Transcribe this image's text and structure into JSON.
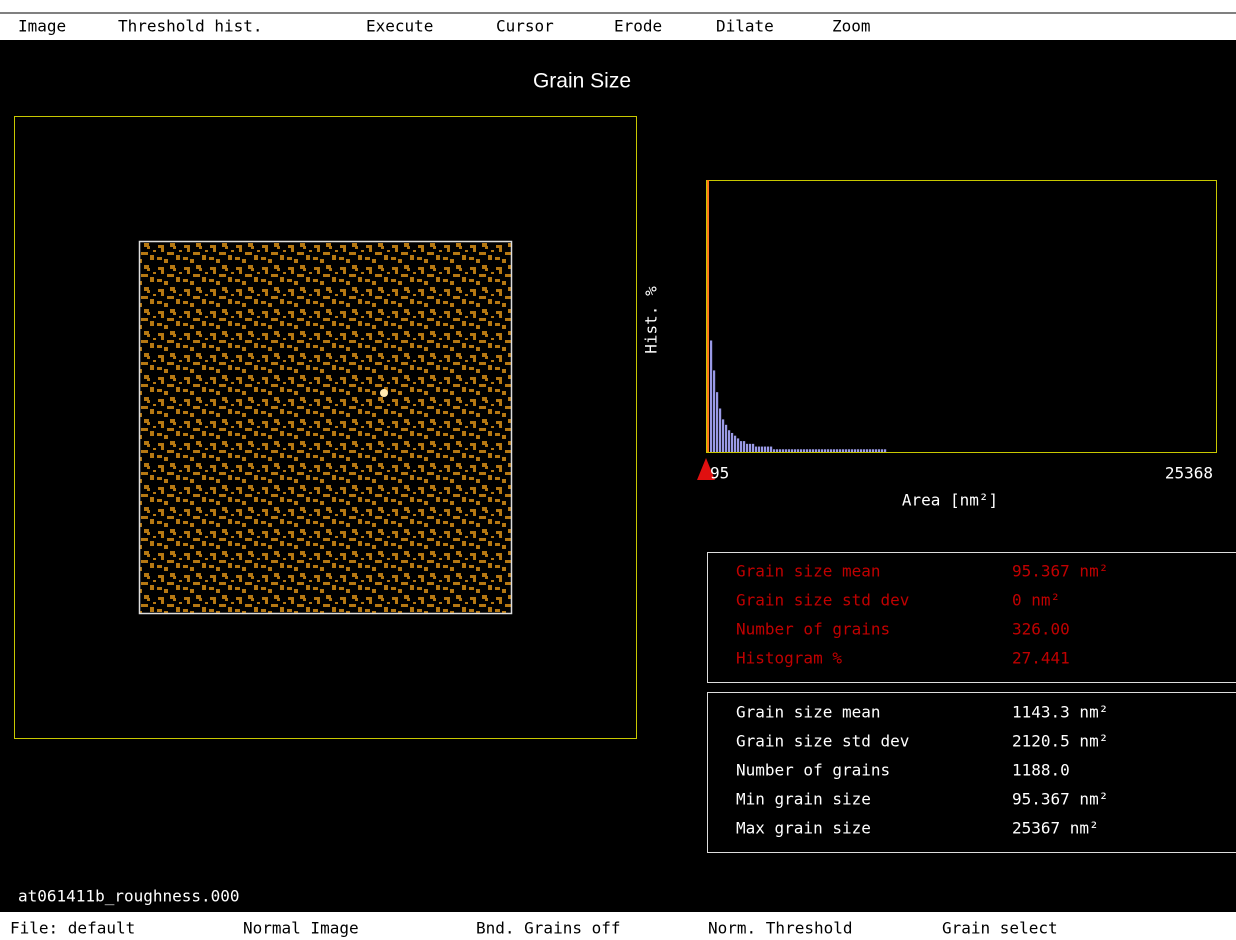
{
  "menu": {
    "items": [
      "Image",
      "Threshold hist.",
      "Execute",
      "Cursor",
      "Erode",
      "Dilate",
      "Zoom"
    ]
  },
  "title": "Grain Size",
  "image_panel": {
    "filename": "at061411b_roughness.000"
  },
  "histogram": {
    "y_label": "Hist. %",
    "x_label": "Area [nm²]",
    "x_min_label": "95",
    "x_max_label": "25368",
    "values": [
      100,
      41,
      30,
      22,
      16,
      12,
      10,
      8,
      7,
      6,
      5,
      4,
      4,
      3,
      3,
      3,
      2,
      2,
      2,
      2,
      2,
      2,
      1,
      1,
      1,
      1,
      1,
      1,
      1,
      1,
      1,
      1,
      1,
      1,
      1,
      1,
      1,
      1,
      1,
      1,
      1,
      1,
      1,
      1,
      1,
      1,
      1,
      1,
      1,
      1,
      1,
      1,
      1,
      1,
      1,
      1,
      1,
      1,
      1,
      1
    ]
  },
  "selected_stats": {
    "rows": [
      [
        "Grain size mean",
        "95.367 nm²"
      ],
      [
        "Grain size std dev",
        "0 nm²"
      ],
      [
        "Number of grains",
        "326.00"
      ],
      [
        "Histogram %",
        "27.441"
      ]
    ]
  },
  "total_stats": {
    "rows": [
      [
        "Grain size mean",
        "1143.3 nm²"
      ],
      [
        "Grain size std dev",
        "2120.5 nm²"
      ],
      [
        "Number of grains",
        "1188.0"
      ],
      [
        "Min grain size",
        "95.367 nm²"
      ],
      [
        "Max grain size",
        "25367 nm²"
      ]
    ]
  },
  "status_bar": {
    "items": [
      "File: default",
      "Normal Image",
      "Bnd. Grains off",
      "Norm. Threshold",
      "Grain select"
    ]
  }
}
